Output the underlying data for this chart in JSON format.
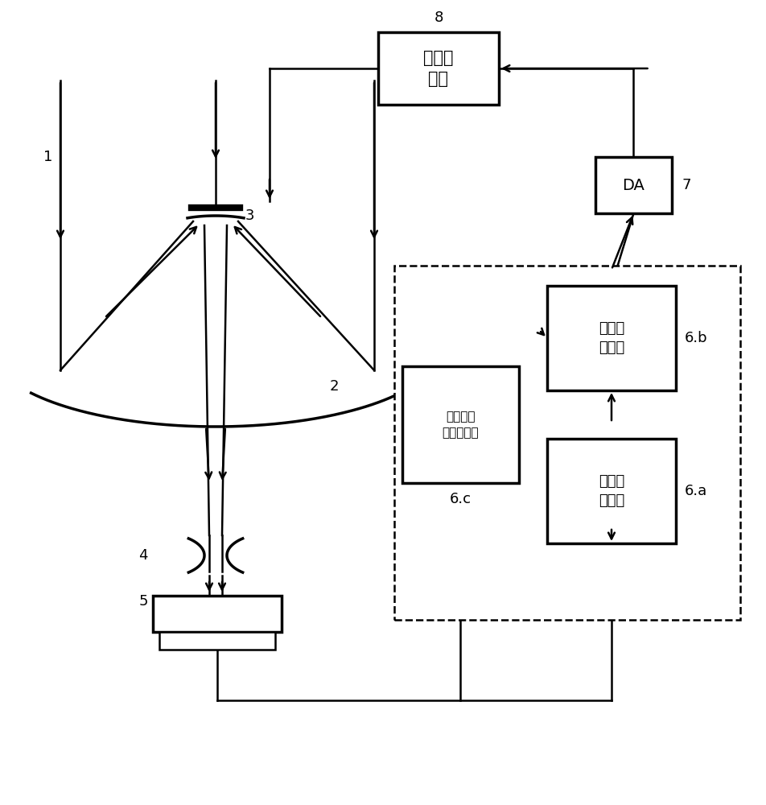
{
  "bg_color": "#ffffff",
  "line_color": "#000000",
  "label_1": "1",
  "label_2": "2",
  "label_3": "3",
  "label_4": "4",
  "label_5": "5",
  "label_6a": "6.a",
  "label_6b": "6.b",
  "label_6c": "6.c",
  "label_7": "7",
  "label_8": "8",
  "box8_text": "高压放\n大器",
  "box7_text": "DA",
  "box6b_text": "矩阵运\n算单元",
  "box6a_text": "光束测\n量单元",
  "box6c_text": "图像传感\n器驱动单元"
}
